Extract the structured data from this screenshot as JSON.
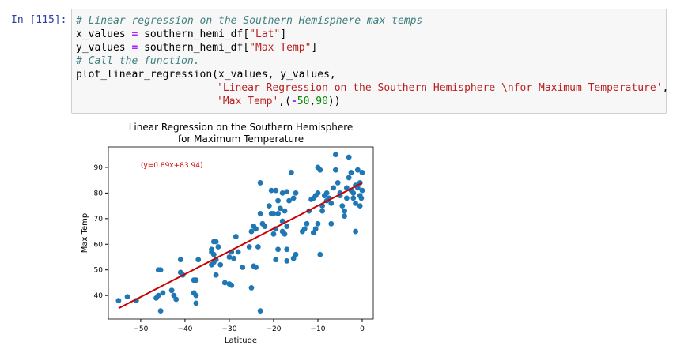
{
  "cell": {
    "prompt": "In [115]:",
    "lines": [
      [
        {
          "k": "comment",
          "t": "# Linear regression on the Southern Hemisphere max temps"
        }
      ],
      [
        {
          "k": "plain",
          "t": "x_values "
        },
        {
          "k": "op",
          "t": "="
        },
        {
          "k": "plain",
          "t": " southern_hemi_df["
        },
        {
          "k": "string",
          "t": "\"Lat\""
        },
        {
          "k": "plain",
          "t": "]"
        }
      ],
      [
        {
          "k": "plain",
          "t": "y_values "
        },
        {
          "k": "op",
          "t": "="
        },
        {
          "k": "plain",
          "t": " southern_hemi_df["
        },
        {
          "k": "string",
          "t": "\"Max Temp\""
        },
        {
          "k": "plain",
          "t": "]"
        }
      ],
      [
        {
          "k": "comment",
          "t": "# Call the function."
        }
      ],
      [
        {
          "k": "plain",
          "t": "plot_linear_regression(x_values, y_values,"
        }
      ],
      [
        {
          "k": "indent",
          "t": "'Linear Regression on the Southern Hemisphere \\nfor Maximum Temperature'"
        },
        {
          "k": "plain",
          "t": ","
        }
      ],
      [
        {
          "k": "indent",
          "t": "'Max Temp'"
        },
        {
          "k": "plain",
          "t": ",("
        },
        {
          "k": "op",
          "t": "-"
        },
        {
          "k": "number",
          "t": "50"
        },
        {
          "k": "plain",
          "t": ","
        },
        {
          "k": "number",
          "t": "90"
        },
        {
          "k": "plain",
          "t": "))"
        }
      ]
    ]
  },
  "chart_data": {
    "type": "scatter",
    "title": [
      "Linear Regression on the Southern Hemisphere",
      "for Maximum Temperature"
    ],
    "x_label": "Latitude",
    "y_label": "Max Temp",
    "color": "#1f77b4",
    "x": [
      -55,
      -53,
      -51,
      -46,
      -45.5,
      -46,
      -46.5,
      -45,
      -45.5,
      -43,
      -42.5,
      -42,
      -41,
      -40.5,
      -41,
      -38,
      -37.5,
      -38,
      -37.5,
      -37.5,
      -37,
      -34,
      -33.5,
      -33,
      -34,
      -33.5,
      -33,
      -32.5,
      -33.5,
      -34,
      -33,
      -32,
      -31,
      -30,
      -29.5,
      -30,
      -29.5,
      -29,
      -28.5,
      -28,
      -27,
      -25.5,
      -25,
      -24.5,
      -24,
      -23.5,
      -24.5,
      -25,
      -24,
      -23,
      -23,
      -23,
      -22,
      -22.5,
      -21,
      -20.5,
      -20,
      -20,
      -20.5,
      -19.5,
      -19,
      -19,
      -18.5,
      -18,
      -18,
      -17.5,
      -17,
      -17.5,
      -17,
      -17,
      -19.5,
      -19,
      -19.5,
      -18,
      -17,
      -16.5,
      -16,
      -15.5,
      -15,
      -15.5,
      -15,
      -13.5,
      -13,
      -12.5,
      -12,
      -11.5,
      -11,
      -10.5,
      -10,
      -10,
      -9.5,
      -9.5,
      -10,
      -10.5,
      -11,
      -9,
      -9,
      -8.5,
      -8,
      -8,
      -7.5,
      -7,
      -7,
      -6.5,
      -6,
      -6,
      -5.5,
      -5,
      -5,
      -4.5,
      -4,
      -4,
      -3.5,
      -3.5,
      -3,
      -3,
      -2.5,
      -2.5,
      -2,
      -2,
      -1.5,
      -1.5,
      -1,
      -1.5,
      -1,
      -0.5,
      -0.5,
      -0.5,
      0,
      0,
      -0.2
    ],
    "values": [
      38,
      39.5,
      38,
      50,
      50,
      40,
      39,
      41,
      34,
      42,
      40,
      38.5,
      54,
      48,
      49,
      46,
      46,
      41,
      40,
      37,
      54,
      52,
      53,
      54,
      58,
      61,
      61,
      59,
      56,
      57,
      48,
      52,
      45,
      44.5,
      44,
      55,
      57,
      54.5,
      63,
      57,
      51,
      59,
      65,
      67,
      66,
      59,
      51.5,
      43,
      51,
      34,
      72,
      84,
      67,
      68,
      75,
      72,
      64,
      72,
      81,
      81,
      72,
      77,
      74,
      69,
      65,
      73,
      67,
      64,
      58,
      53.5,
      54,
      58,
      66,
      80,
      80.5,
      77,
      88,
      78,
      80,
      54.5,
      56,
      65,
      66,
      68,
      73,
      77.5,
      78,
      79,
      80,
      90,
      89,
      56,
      68,
      66,
      64.5,
      73,
      75,
      79,
      80,
      77,
      78,
      76,
      68,
      82,
      89,
      95,
      84,
      80,
      79,
      75,
      73,
      71,
      82,
      78,
      94,
      86,
      88,
      81,
      80,
      78,
      83,
      76,
      89,
      65,
      82,
      84,
      79,
      75,
      88,
      81,
      78
    ],
    "fit": {
      "label": "(y=0.89x+83.94)",
      "slope": 0.89,
      "intercept": 83.94,
      "color": "#cc0000"
    },
    "xlim": [
      -57.3,
      2.5
    ],
    "ylim": [
      30.8,
      98
    ],
    "xticks": [
      {
        "value": -50,
        "label": "−50"
      },
      {
        "value": -40,
        "label": "−40"
      },
      {
        "value": -30,
        "label": "−30"
      },
      {
        "value": -20,
        "label": "−20"
      },
      {
        "value": -10,
        "label": "−10"
      },
      0
    ],
    "yticks": [
      40,
      50,
      60,
      70,
      80,
      90
    ]
  }
}
